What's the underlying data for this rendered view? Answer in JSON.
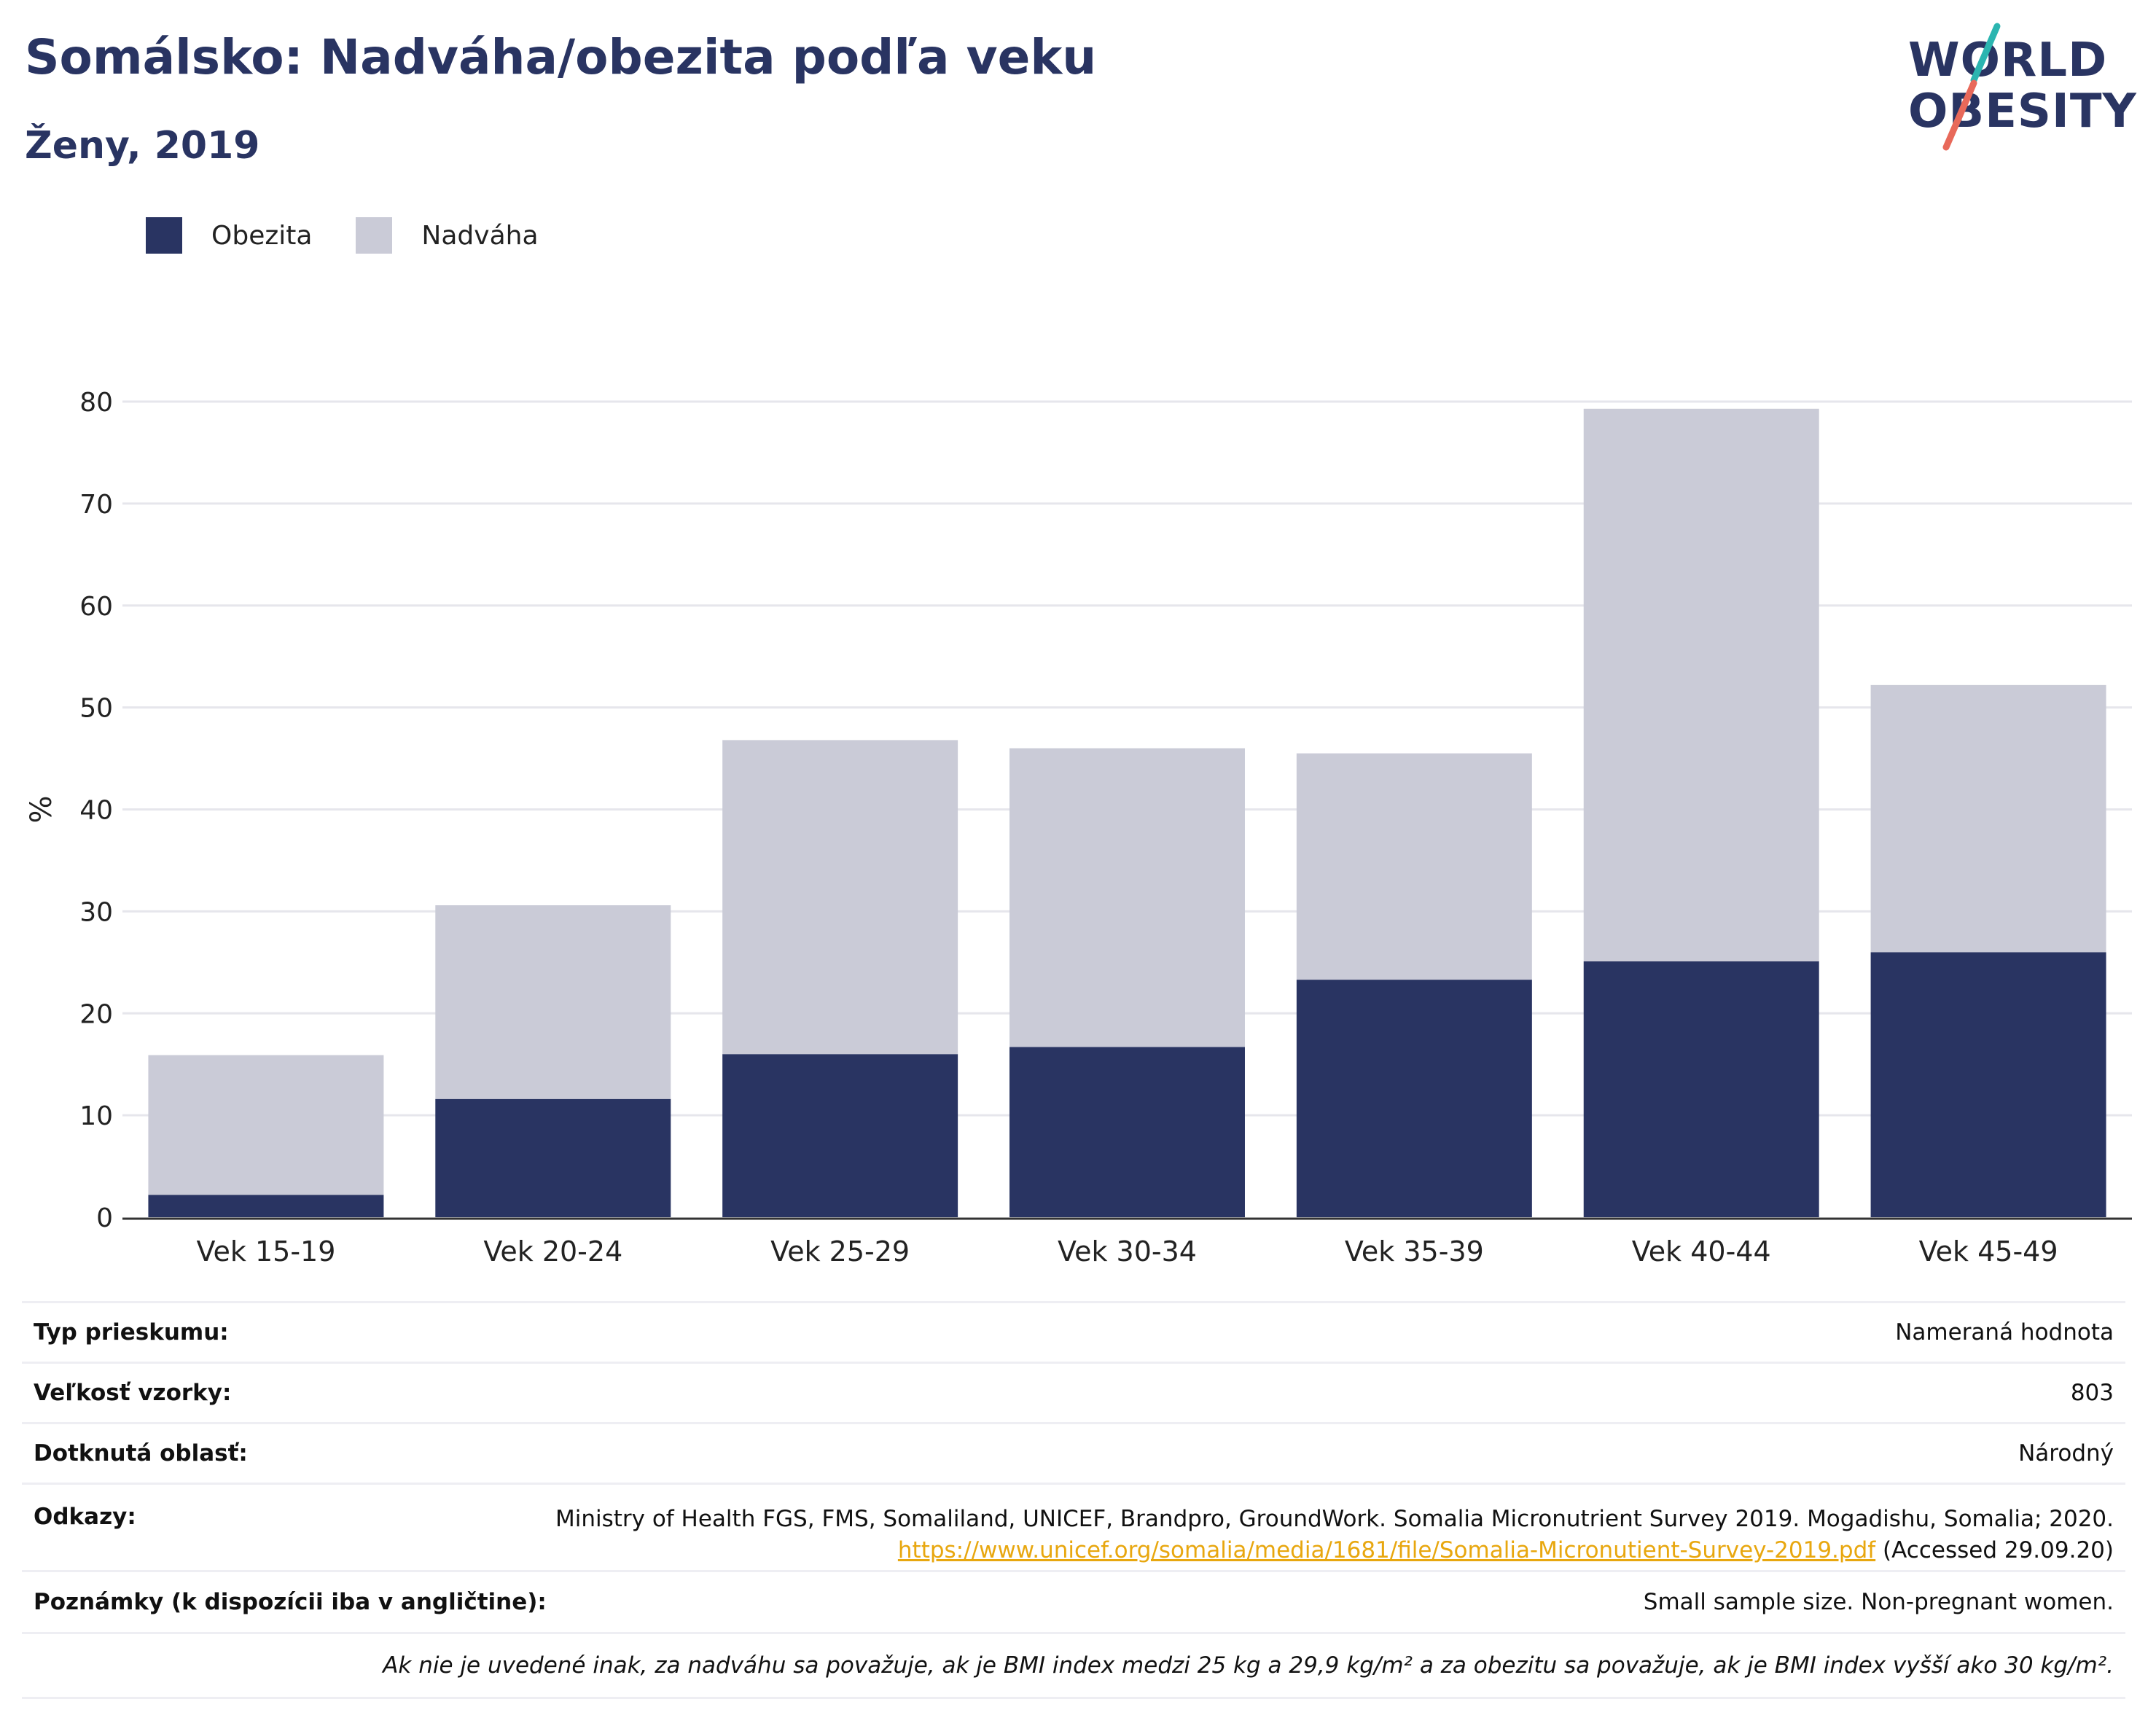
{
  "title": "Somálsko: Nadváha/obezita podľa veku",
  "subtitle": "Ženy, 2019",
  "logo": {
    "line1": "WORLD",
    "line2": "OBESITY",
    "accent_colors": [
      "#2bb5b0",
      "#e8695a"
    ]
  },
  "legend": [
    {
      "label": "Obezita",
      "color": "#293462"
    },
    {
      "label": "Nadváha",
      "color": "#cacbd7"
    }
  ],
  "chart_data": {
    "type": "bar",
    "stacked": true,
    "categories": [
      "Vek 15-19",
      "Vek 20-24",
      "Vek 25-29",
      "Vek 30-34",
      "Vek 35-39",
      "Vek 40-44",
      "Vek 45-49"
    ],
    "series": [
      {
        "name": "Obezita",
        "color": "#293462",
        "values": [
          2.2,
          11.6,
          16.0,
          16.7,
          23.3,
          25.1,
          26.0
        ]
      },
      {
        "name": "Nadváha",
        "color": "#cacbd7",
        "values": [
          13.7,
          19.0,
          30.8,
          29.3,
          22.2,
          54.2,
          26.2
        ]
      }
    ],
    "ylabel": "%",
    "xlabel": "",
    "ylim": [
      0,
      80
    ],
    "yticks": [
      "0",
      "10",
      "20",
      "30",
      "40",
      "50",
      "60",
      "70",
      "80"
    ],
    "grid": true,
    "legend_position": "top-left"
  },
  "info": {
    "survey_type_label": "Typ prieskumu:",
    "survey_type_value": "Nameraná hodnota",
    "sample_size_label": "Veľkosť vzorky:",
    "sample_size_value": "803",
    "area_label": "Dotknutá oblasť:",
    "area_value": "Národný",
    "references_label": "Odkazy:",
    "references_text_1": "Ministry of Health FGS, FMS, Somaliland, UNICEF, Brandpro, GroundWork. Somalia Micronutrient Survey 2019. Mogadishu, Somalia; 2020.",
    "references_link": "https://www.unicef.org/somalia/media/1681/file/Somalia-Micronutient-Survey-2019.pdf",
    "references_text_2": "(Accessed 29.09.20)",
    "notes_label": "Poznámky (k dispozícii iba v angličtine):",
    "notes_value": "Small sample size. Non-pregnant women.",
    "definition_note": "Ak nie je uvedené inak, za nadváhu sa považuje, ak je BMI index medzi 25 kg a 29,9 kg/m² a za obezitu sa považuje, ak je BMI index vyšší ako 30 kg/m²."
  }
}
